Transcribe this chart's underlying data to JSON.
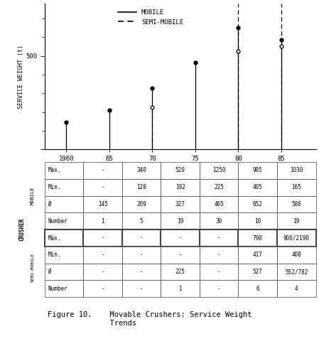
{
  "years": [
    "1960",
    "65",
    "70",
    "75",
    "80",
    "85"
  ],
  "mobile_avg": [
    145,
    209,
    327,
    465,
    652,
    586
  ],
  "semi_mobile_avg": [
    null,
    null,
    225,
    null,
    527,
    552
  ],
  "ylabel": "SERVICE WEIGHT (t)",
  "ytick_val": 500,
  "ylim": [
    0,
    780
  ],
  "legend_mobile": "MOBILE",
  "legend_semi": "SEMI-MOBILE",
  "table_row_labels_mobile": [
    "Max.",
    "Min.",
    "Ø",
    "Number"
  ],
  "table_row_labels_semi": [
    "Max.",
    "Min.",
    "Ø",
    "Number"
  ],
  "mobile_table": [
    [
      "-",
      "340",
      "520",
      "1250",
      "985",
      "1030"
    ],
    [
      "-",
      "128",
      "192",
      "225",
      "405",
      "165"
    ],
    [
      "145",
      "209",
      "327",
      "465",
      "652",
      "586"
    ],
    [
      "1",
      "5",
      "19",
      "30",
      "10",
      "19"
    ]
  ],
  "semi_table": [
    [
      "-",
      "-",
      "-",
      "-",
      "790",
      "900/2190"
    ],
    [
      "-",
      "-",
      "-",
      "-",
      "417",
      "408"
    ],
    [
      "-",
      "-",
      "225",
      "-",
      "527",
      "552/782"
    ],
    [
      "-",
      "-",
      "1",
      "-",
      "6",
      "4"
    ]
  ],
  "caption_line1": "Figure 10.    Movable Crushers: Service Weight",
  "caption_line2": "              Trends",
  "bg_color": "#ffffff",
  "line_color": "#000000"
}
